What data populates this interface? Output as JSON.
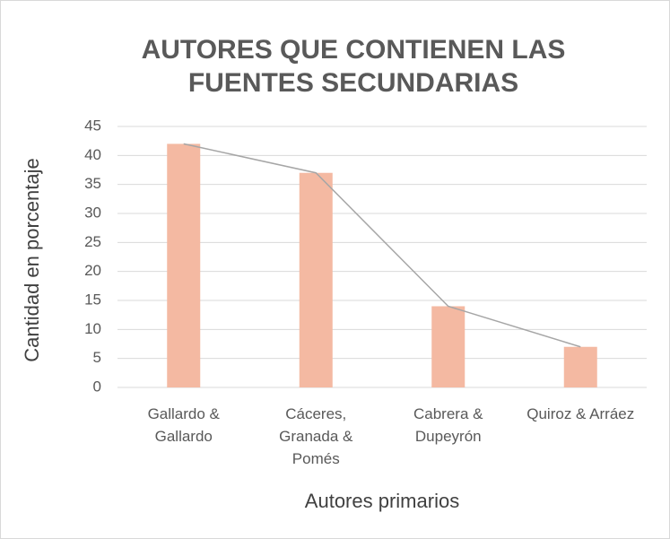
{
  "chart_data": {
    "type": "bar",
    "title": "AUTORES QUE CONTIENEN LAS FUENTES SECUNDARIAS",
    "x_label": "Autores primarios",
    "y_label": "Cantidad en porcentaje",
    "categories": [
      "Gallardo & Gallardo",
      "Cáceres, Granada & Pomés",
      "Cabrera & Dupeyrón",
      "Quiroz & Arráez"
    ],
    "values": [
      42,
      37,
      14,
      7
    ],
    "color": "#f4b9a2",
    "line": true,
    "line_color": "#a6a6a6",
    "ylim": [
      0,
      45
    ],
    "yticks": [
      0,
      5,
      10,
      15,
      20,
      25,
      30,
      35,
      40,
      45
    ],
    "grid": true
  }
}
